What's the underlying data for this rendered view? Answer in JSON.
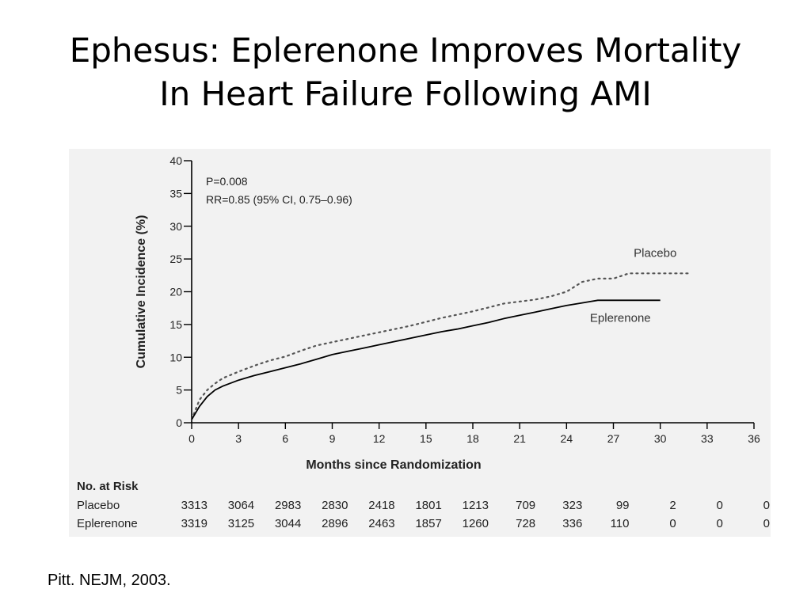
{
  "slide": {
    "title_line1": "Ephesus: Eplerenone Improves Mortality",
    "title_line2": "In Heart Failure Following AMI",
    "citation": "Pitt. NEJM, 2003."
  },
  "colors": {
    "figure_background": "#f2f2f2",
    "axis": "#000000",
    "eplerenone_line": "#000000",
    "placebo_line": "#000000"
  },
  "chart_data": {
    "type": "line",
    "xlabel": "Months since Randomization",
    "ylabel": "Cumulative Incidence (%)",
    "xlim": [
      0,
      36
    ],
    "ylim": [
      0,
      40
    ],
    "x_ticks": [
      0,
      3,
      6,
      9,
      12,
      15,
      18,
      21,
      24,
      27,
      30,
      33,
      36
    ],
    "y_ticks": [
      0,
      5,
      10,
      15,
      20,
      25,
      30,
      35,
      40
    ],
    "grid": false,
    "annotations": [
      "P=0.008",
      "RR=0.85 (95% CI, 0.75–0.96)"
    ],
    "series": [
      {
        "name": "Placebo",
        "style": "dotted",
        "x": [
          0,
          0.5,
          1,
          1.5,
          2,
          3,
          4,
          5,
          6,
          7,
          8,
          9,
          10,
          11,
          12,
          13,
          14,
          15,
          16,
          17,
          18,
          19,
          20,
          21,
          22,
          23,
          24,
          25,
          26,
          27,
          28,
          29,
          30,
          31,
          32
        ],
        "y": [
          0.5,
          3.5,
          5.0,
          6.0,
          6.8,
          7.8,
          8.7,
          9.5,
          10.1,
          11.0,
          11.8,
          12.3,
          12.8,
          13.3,
          13.8,
          14.3,
          14.8,
          15.4,
          16.0,
          16.5,
          17.0,
          17.6,
          18.2,
          18.5,
          18.8,
          19.3,
          20.0,
          21.5,
          22.0,
          22.0,
          22.8,
          22.8,
          22.8,
          22.8,
          22.8
        ]
      },
      {
        "name": "Eplerenone",
        "style": "solid",
        "x": [
          0,
          0.5,
          1,
          1.5,
          2,
          3,
          4,
          5,
          6,
          7,
          8,
          9,
          10,
          11,
          12,
          13,
          14,
          15,
          16,
          17,
          18,
          19,
          20,
          21,
          22,
          23,
          24,
          25,
          26,
          27,
          28,
          29,
          30
        ],
        "y": [
          0.5,
          2.5,
          4.0,
          5.0,
          5.6,
          6.5,
          7.2,
          7.8,
          8.4,
          9.0,
          9.7,
          10.4,
          10.9,
          11.4,
          11.9,
          12.4,
          12.9,
          13.4,
          13.9,
          14.3,
          14.8,
          15.3,
          15.9,
          16.4,
          16.9,
          17.4,
          17.9,
          18.3,
          18.7,
          18.7,
          18.7,
          18.7,
          18.7
        ]
      }
    ],
    "risk_table": {
      "header": "No. at Risk",
      "rows": [
        {
          "label": "Placebo",
          "values": [
            "3313",
            "3064",
            "2983",
            "2830",
            "2418",
            "1801",
            "1213",
            "709",
            "323",
            "99",
            "2",
            "0",
            "0"
          ]
        },
        {
          "label": "Eplerenone",
          "values": [
            "3319",
            "3125",
            "3044",
            "2896",
            "2463",
            "1857",
            "1260",
            "728",
            "336",
            "110",
            "0",
            "0",
            "0"
          ]
        }
      ]
    }
  }
}
